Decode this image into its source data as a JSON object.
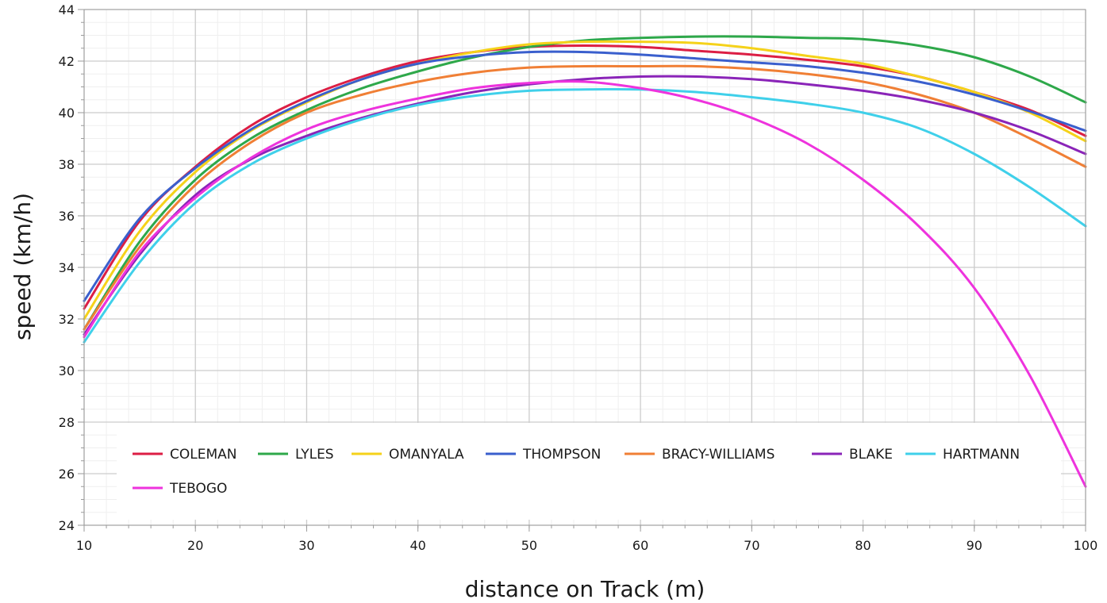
{
  "chart_data": {
    "type": "line",
    "xlabel": "distance on Track (m)",
    "ylabel": "speed (km/h)",
    "xlim": [
      10,
      100
    ],
    "ylim": [
      24,
      44
    ],
    "x_ticks": [
      10,
      20,
      30,
      40,
      50,
      60,
      70,
      80,
      90,
      100
    ],
    "y_ticks": [
      24,
      26,
      28,
      30,
      32,
      34,
      36,
      38,
      40,
      42,
      44
    ],
    "x_tick_labels": [
      "10",
      "20",
      "30",
      "40",
      "50",
      "60",
      "70",
      "80",
      "90",
      "100"
    ],
    "y_tick_labels": [
      "24",
      "26",
      "28",
      "30",
      "32",
      "34",
      "36",
      "38",
      "40",
      "42",
      "44"
    ],
    "grid": true,
    "legend_position": "bottom-left inside plot",
    "x": [
      10,
      15,
      20,
      25,
      30,
      35,
      40,
      45,
      50,
      55,
      60,
      65,
      70,
      75,
      80,
      85,
      90,
      95,
      100
    ],
    "series": [
      {
        "name": "COLEMAN",
        "color": "#dc1e44",
        "values": [
          32.4,
          35.8,
          37.9,
          39.5,
          40.6,
          41.4,
          42.0,
          42.35,
          42.55,
          42.6,
          42.55,
          42.4,
          42.25,
          42.05,
          41.8,
          41.4,
          40.8,
          40.1,
          39.1
        ]
      },
      {
        "name": "LYLES",
        "color": "#2ea84a",
        "values": [
          31.6,
          35.0,
          37.4,
          39.0,
          40.1,
          40.95,
          41.6,
          42.15,
          42.55,
          42.8,
          42.9,
          42.95,
          42.95,
          42.9,
          42.85,
          42.6,
          42.15,
          41.4,
          40.4
        ]
      },
      {
        "name": "OMANYALA",
        "color": "#f5d21a",
        "values": [
          32.0,
          35.4,
          37.7,
          39.3,
          40.4,
          41.3,
          41.9,
          42.35,
          42.65,
          42.75,
          42.75,
          42.7,
          42.5,
          42.2,
          41.9,
          41.4,
          40.8,
          40.0,
          38.9
        ]
      },
      {
        "name": "THOMPSON",
        "color": "#3a5fcd",
        "values": [
          32.7,
          35.9,
          37.85,
          39.35,
          40.45,
          41.3,
          41.9,
          42.2,
          42.35,
          42.35,
          42.25,
          42.1,
          41.95,
          41.8,
          41.55,
          41.2,
          40.7,
          40.05,
          39.3
        ]
      },
      {
        "name": "BRACY-WILLIAMS",
        "color": "#f07f35",
        "values": [
          31.6,
          34.8,
          37.2,
          38.85,
          40.0,
          40.7,
          41.2,
          41.55,
          41.75,
          41.8,
          41.8,
          41.8,
          41.7,
          41.5,
          41.2,
          40.7,
          40.0,
          39.0,
          37.9
        ]
      },
      {
        "name": "BLAKE",
        "color": "#8a24b8",
        "values": [
          31.4,
          34.5,
          36.8,
          38.2,
          39.1,
          39.8,
          40.35,
          40.8,
          41.1,
          41.3,
          41.4,
          41.4,
          41.3,
          41.1,
          40.85,
          40.5,
          40.0,
          39.3,
          38.4
        ]
      },
      {
        "name": "HARTMANN",
        "color": "#3fd0ea",
        "values": [
          31.1,
          34.2,
          36.5,
          38.0,
          39.0,
          39.75,
          40.3,
          40.65,
          40.85,
          40.9,
          40.9,
          40.8,
          40.6,
          40.35,
          40.0,
          39.4,
          38.4,
          37.1,
          35.6
        ]
      },
      {
        "name": "TEBOGO",
        "color": "#ee33dd",
        "values": [
          31.3,
          34.6,
          36.7,
          38.25,
          39.35,
          40.05,
          40.55,
          40.95,
          41.15,
          41.2,
          40.95,
          40.5,
          39.8,
          38.8,
          37.4,
          35.6,
          33.2,
          29.8,
          25.5
        ]
      }
    ]
  }
}
